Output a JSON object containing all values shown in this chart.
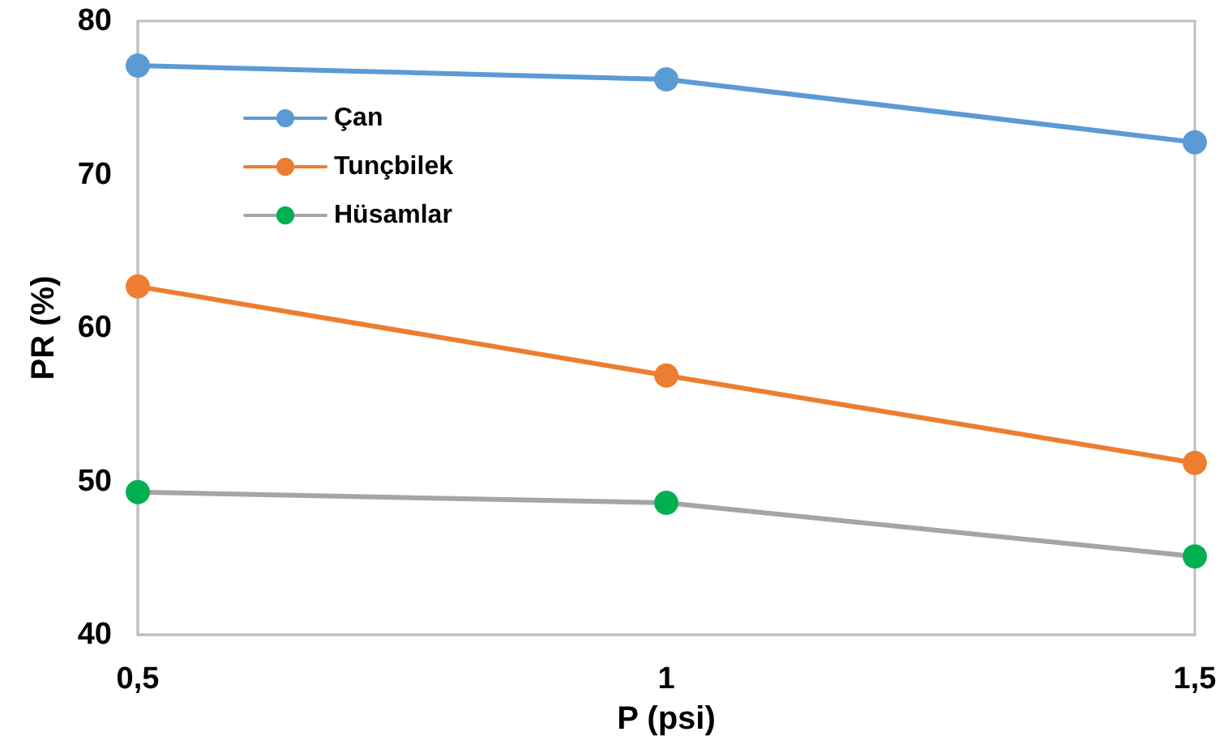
{
  "chart_data": {
    "type": "line",
    "xlabel": "P (psi)",
    "ylabel": "PR (%)",
    "x": [
      0.5,
      1,
      1.5
    ],
    "series": [
      {
        "name": "Çan",
        "color": "#5b9bd5",
        "values": [
          77.1,
          76.2,
          72.1
        ]
      },
      {
        "name": "Tunçbilek",
        "color": "#ed7d31",
        "values": [
          62.7,
          56.9,
          51.2
        ]
      },
      {
        "name": "Hüsamlar",
        "color": "#a5a5a5",
        "colors": [
          "#00b050",
          "#00b050",
          "#00b050"
        ],
        "values": [
          49.3,
          48.6,
          45.1
        ]
      }
    ],
    "xlim": [
      0.5,
      1.5
    ],
    "xticks": [
      {
        "value": 0.5,
        "label": "0,5"
      },
      1,
      {
        "value": 1.5,
        "label": "1,5"
      }
    ],
    "ylim": [
      40,
      80
    ],
    "yticks": [
      40,
      50,
      60,
      70,
      80
    ],
    "grid": false,
    "legend": "top left",
    "marker": "circle",
    "line_style": "solid"
  }
}
